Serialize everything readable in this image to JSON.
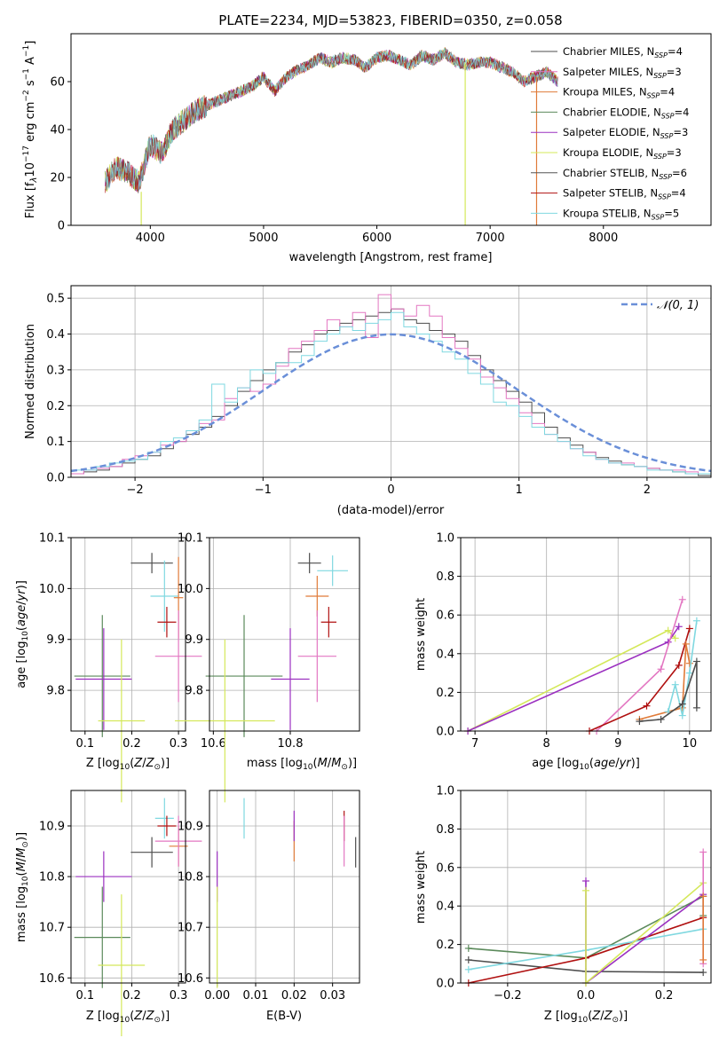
{
  "chart_data": [
    {
      "type": "line",
      "title": "PLATE=2234, MJD=53823, FIBERID=0350, z=0.058",
      "xlabel": "wavelength [Angstrom, rest frame]",
      "ylabel": "Flux [f_λ10^{-17} erg cm^{-2} s^{-1} A^{-1}]",
      "xlim": [
        3300,
        8950
      ],
      "ylim": [
        0,
        80
      ],
      "xticks": [
        4000,
        5000,
        6000,
        7000,
        8000
      ],
      "yticks": [
        0,
        20,
        40,
        60
      ],
      "grid": false,
      "legend_position": "top-right",
      "spectrum_x": [
        3600,
        3700,
        3800,
        3900,
        4000,
        4100,
        4200,
        4300,
        4400,
        4500,
        4600,
        4700,
        4800,
        4900,
        5000,
        5100,
        5200,
        5300,
        5400,
        5500,
        5600,
        5700,
        5800,
        5900,
        6000,
        6100,
        6200,
        6300,
        6400,
        6500,
        6600,
        6700,
        6800,
        6900,
        7000,
        7100,
        7200,
        7300,
        7400,
        7500,
        7600
      ],
      "spectrum_y": [
        18,
        24,
        22,
        18,
        34,
        30,
        40,
        44,
        48,
        50,
        52,
        54,
        56,
        58,
        62,
        56,
        62,
        65,
        67,
        70,
        68,
        70,
        69,
        66,
        70,
        71,
        69,
        67,
        71,
        69,
        72,
        68,
        67,
        68,
        68,
        66,
        64,
        60,
        62,
        64,
        60
      ],
      "series": [
        {
          "name": "Chabrier MILES, N_SSP=4",
          "color": "#4d4d4d"
        },
        {
          "name": "Salpeter MILES, N_SSP=3",
          "color": "#e377c2"
        },
        {
          "name": "Kroupa MILES, N_SSP=4",
          "color": "#e07b39"
        },
        {
          "name": "Chabrier ELODIE, N_SSP=4",
          "color": "#5b8a5b"
        },
        {
          "name": "Salpeter ELODIE, N_SSP=3",
          "color": "#9b30c0"
        },
        {
          "name": "Kroupa ELODIE, N_SSP=3",
          "color": "#d4e85a"
        },
        {
          "name": "Chabrier STELIB, N_SSP=6",
          "color": "#555555"
        },
        {
          "name": "Salpeter STELIB, N_SSP=4",
          "color": "#b01010"
        },
        {
          "name": "Kroupa STELIB, N_SSP=5",
          "color": "#7fd8e0"
        }
      ]
    },
    {
      "type": "bar",
      "xlabel": "(data-model)/error",
      "ylabel": "Normed distribution",
      "xlim": [
        -2.5,
        2.5
      ],
      "ylim": [
        0,
        0.535
      ],
      "xticks": [
        -2,
        -1,
        0,
        1,
        2
      ],
      "yticks": [
        0.0,
        0.1,
        0.2,
        0.3,
        0.4,
        0.5
      ],
      "grid": true,
      "legend_position": "top-right",
      "legend_entry": "𝒩(0, 1)",
      "bin_width": 0.1,
      "histograms": [
        {
          "color": "#4d4d4d",
          "values": [
            0.01,
            0.015,
            0.02,
            0.03,
            0.04,
            0.05,
            0.06,
            0.08,
            0.1,
            0.12,
            0.14,
            0.17,
            0.2,
            0.24,
            0.27,
            0.3,
            0.32,
            0.35,
            0.37,
            0.4,
            0.41,
            0.43,
            0.44,
            0.45,
            0.46,
            0.47,
            0.44,
            0.43,
            0.41,
            0.4,
            0.38,
            0.34,
            0.3,
            0.27,
            0.24,
            0.21,
            0.18,
            0.14,
            0.11,
            0.09,
            0.07,
            0.055,
            0.045,
            0.035,
            0.03,
            0.025,
            0.02,
            0.015,
            0.01,
            0.005
          ]
        },
        {
          "color": "#e377c2",
          "values": [
            0.01,
            0.02,
            0.025,
            0.03,
            0.05,
            0.06,
            0.07,
            0.09,
            0.1,
            0.13,
            0.15,
            0.16,
            0.22,
            0.25,
            0.24,
            0.26,
            0.31,
            0.36,
            0.38,
            0.41,
            0.44,
            0.42,
            0.46,
            0.39,
            0.51,
            0.47,
            0.45,
            0.48,
            0.45,
            0.39,
            0.36,
            0.33,
            0.28,
            0.25,
            0.22,
            0.18,
            0.15,
            0.12,
            0.1,
            0.08,
            0.07,
            0.05,
            0.04,
            0.04,
            0.03,
            0.025,
            0.02,
            0.02,
            0.015,
            0.01
          ]
        },
        {
          "color": "#7fd8e0",
          "values": [
            0.02,
            0.02,
            0.03,
            0.04,
            0.045,
            0.05,
            0.07,
            0.1,
            0.11,
            0.13,
            0.16,
            0.26,
            0.21,
            0.25,
            0.3,
            0.29,
            0.32,
            0.32,
            0.34,
            0.38,
            0.4,
            0.42,
            0.41,
            0.43,
            0.44,
            0.46,
            0.42,
            0.4,
            0.38,
            0.35,
            0.33,
            0.29,
            0.26,
            0.21,
            0.2,
            0.17,
            0.14,
            0.12,
            0.1,
            0.08,
            0.06,
            0.05,
            0.04,
            0.035,
            0.03,
            0.02,
            0.02,
            0.015,
            0.01,
            0.01
          ]
        }
      ]
    },
    {
      "type": "scatter",
      "xlabel": "Z [log10(Z/Z⊙)]",
      "ylabel": "age [log10(age/yr)]",
      "xlim": [
        0.07,
        0.315
      ],
      "ylim": [
        9.72,
        10.1
      ],
      "xticks": [
        0.1,
        0.2,
        0.3
      ],
      "yticks": [
        9.8,
        9.9,
        10.0,
        10.1
      ],
      "grid": true,
      "points": [
        {
          "x": 0.137,
          "y": 9.828,
          "xerr": 0.06,
          "yerr": 0.12,
          "color": "#5b8a5b"
        },
        {
          "x": 0.14,
          "y": 9.822,
          "xerr": 0.06,
          "yerr": 0.1,
          "color": "#9b30c0"
        },
        {
          "x": 0.178,
          "y": 9.74,
          "xerr": 0.05,
          "yerr": 0.16,
          "color": "#d4e85a"
        },
        {
          "x": 0.243,
          "y": 10.05,
          "xerr": 0.045,
          "yerr": 0.02,
          "color": "#4d4d4d"
        },
        {
          "x": 0.27,
          "y": 9.985,
          "xerr": 0.03,
          "yerr": 0.07,
          "color": "#7fd8e0"
        },
        {
          "x": 0.3,
          "y": 9.982,
          "xerr": 0.01,
          "yerr": 0.08,
          "color": "#e07b39"
        },
        {
          "x": 0.275,
          "y": 9.934,
          "xerr": 0.02,
          "yerr": 0.03,
          "color": "#b01010"
        },
        {
          "x": 0.3,
          "y": 9.867,
          "xerr": 0.05,
          "yerr": 0.09,
          "color": "#e377c2"
        }
      ]
    },
    {
      "type": "scatter",
      "xlabel": "mass [log10(M/M⊙)]",
      "ylabel": "",
      "xlim": [
        10.59,
        10.98
      ],
      "ylim": [
        9.72,
        10.1
      ],
      "xticks": [
        10.6,
        10.8
      ],
      "yticks": [
        9.8,
        9.9,
        10.0,
        10.1
      ],
      "grid": true,
      "points": [
        {
          "x": 10.68,
          "y": 9.828,
          "xerr": 0.1,
          "yerr": 0.12,
          "color": "#5b8a5b"
        },
        {
          "x": 10.8,
          "y": 9.822,
          "xerr": 0.05,
          "yerr": 0.1,
          "color": "#9b30c0"
        },
        {
          "x": 10.63,
          "y": 9.74,
          "xerr": 0.13,
          "yerr": 0.16,
          "color": "#d4e85a"
        },
        {
          "x": 10.85,
          "y": 10.05,
          "xerr": 0.03,
          "yerr": 0.02,
          "color": "#4d4d4d"
        },
        {
          "x": 10.91,
          "y": 10.035,
          "xerr": 0.04,
          "yerr": 0.03,
          "color": "#7fd8e0"
        },
        {
          "x": 10.87,
          "y": 9.985,
          "xerr": 0.03,
          "yerr": 0.04,
          "color": "#e07b39"
        },
        {
          "x": 10.9,
          "y": 9.934,
          "xerr": 0.02,
          "yerr": 0.03,
          "color": "#b01010"
        },
        {
          "x": 10.87,
          "y": 9.867,
          "xerr": 0.05,
          "yerr": 0.09,
          "color": "#e377c2"
        }
      ]
    },
    {
      "type": "line",
      "xlabel": "age [log10(age/yr)]",
      "ylabel": "mass weight",
      "xlim": [
        6.8,
        10.3
      ],
      "ylim": [
        0,
        1.0
      ],
      "xticks": [
        7,
        8,
        9,
        10
      ],
      "yticks": [
        0.0,
        0.2,
        0.4,
        0.6,
        0.8,
        1.0
      ],
      "grid": true,
      "series": [
        {
          "color": "#d4e85a",
          "x": [
            6.9,
            9.7,
            9.8
          ],
          "y": [
            0.0,
            0.52,
            0.48
          ]
        },
        {
          "color": "#9b30c0",
          "x": [
            6.9,
            9.7,
            9.85
          ],
          "y": [
            0.0,
            0.46,
            0.54
          ]
        },
        {
          "color": "#e377c2",
          "x": [
            8.7,
            9.6,
            9.9
          ],
          "y": [
            0.0,
            0.32,
            0.68
          ]
        },
        {
          "color": "#b01010",
          "x": [
            8.6,
            9.4,
            9.85,
            10.0
          ],
          "y": [
            0.0,
            0.13,
            0.34,
            0.53
          ]
        },
        {
          "color": "#e07b39",
          "x": [
            9.3,
            9.9,
            9.95,
            10.0
          ],
          "y": [
            0.06,
            0.12,
            0.45,
            0.35
          ]
        },
        {
          "color": "#7fd8e0",
          "x": [
            9.7,
            9.8,
            9.9,
            10.0,
            10.1
          ],
          "y": [
            0.1,
            0.24,
            0.08,
            0.3,
            0.57
          ]
        },
        {
          "color": "#4d4d4d",
          "x": [
            9.3,
            9.6,
            9.9,
            10.1,
            10.1
          ],
          "y": [
            0.05,
            0.06,
            0.14,
            0.36,
            0.12
          ]
        }
      ]
    },
    {
      "type": "scatter",
      "xlabel": "Z [log10(Z/Z⊙)]",
      "ylabel": "mass [log10(M/M⊙)]",
      "xlim": [
        0.07,
        0.315
      ],
      "ylim": [
        10.59,
        10.97
      ],
      "xticks": [
        0.1,
        0.2,
        0.3
      ],
      "yticks": [
        10.6,
        10.7,
        10.8,
        10.9
      ],
      "grid": true,
      "points": [
        {
          "x": 0.137,
          "y": 10.68,
          "xerr": 0.06,
          "yerr": 0.1,
          "color": "#5b8a5b"
        },
        {
          "x": 0.14,
          "y": 10.8,
          "xerr": 0.06,
          "yerr": 0.05,
          "color": "#9b30c0"
        },
        {
          "x": 0.178,
          "y": 10.625,
          "xerr": 0.05,
          "yerr": 0.14,
          "color": "#d4e85a"
        },
        {
          "x": 0.243,
          "y": 10.848,
          "xerr": 0.045,
          "yerr": 0.03,
          "color": "#4d4d4d"
        },
        {
          "x": 0.27,
          "y": 10.915,
          "xerr": 0.02,
          "yerr": 0.04,
          "color": "#7fd8e0"
        },
        {
          "x": 0.3,
          "y": 10.86,
          "xerr": 0.02,
          "yerr": 0.04,
          "color": "#e07b39"
        },
        {
          "x": 0.275,
          "y": 10.9,
          "xerr": 0.02,
          "yerr": 0.02,
          "color": "#b01010"
        },
        {
          "x": 0.3,
          "y": 10.87,
          "xerr": 0.05,
          "yerr": 0.05,
          "color": "#e377c2"
        }
      ]
    },
    {
      "type": "scatter",
      "xlabel": "E(B-V)",
      "ylabel": "",
      "xlim": [
        -0.002,
        0.037
      ],
      "ylim": [
        10.59,
        10.97
      ],
      "xticks": [
        0.0,
        0.01,
        0.02,
        0.03
      ],
      "yticks": [
        10.6,
        10.7,
        10.8,
        10.9
      ],
      "grid": true,
      "points": [
        {
          "x": 0.0,
          "y": 10.8,
          "yerr": 0.05,
          "color": "#9b30c0"
        },
        {
          "x": 0.0,
          "y": 10.68,
          "yerr": 0.1,
          "color": "#d4e85a"
        },
        {
          "x": 0.007,
          "y": 10.915,
          "yerr": 0.04,
          "color": "#7fd8e0"
        },
        {
          "x": 0.02,
          "y": 10.87,
          "yerr": 0.04,
          "color": "#e07b39"
        },
        {
          "x": 0.02,
          "y": 10.9,
          "yerr": 0.03,
          "color": "#9b30c0"
        },
        {
          "x": 0.033,
          "y": 10.9,
          "yerr": 0.03,
          "color": "#b01010"
        },
        {
          "x": 0.033,
          "y": 10.87,
          "yerr": 0.05,
          "color": "#e377c2"
        },
        {
          "x": 0.036,
          "y": 10.848,
          "yerr": 0.03,
          "color": "#4d4d4d"
        }
      ]
    },
    {
      "type": "line",
      "xlabel": "Z [log10(Z/Z⊙)]",
      "ylabel": "mass weight",
      "xlim": [
        -0.32,
        0.32
      ],
      "ylim": [
        0,
        1.0
      ],
      "xticks": [
        -0.2,
        0.0,
        0.2
      ],
      "yticks": [
        0.0,
        0.2,
        0.4,
        0.6,
        0.8,
        1.0
      ],
      "grid": true,
      "series": [
        {
          "color": "#5b8a5b",
          "x": [
            -0.3,
            0.0,
            0.3,
            0.3
          ],
          "y": [
            0.18,
            0.13,
            0.45,
            0.35
          ]
        },
        {
          "color": "#4d4d4d",
          "x": [
            -0.3,
            0.0,
            0.3
          ],
          "y": [
            0.12,
            0.06,
            0.055
          ]
        },
        {
          "color": "#b01010",
          "x": [
            -0.3,
            0.0,
            0.3
          ],
          "y": [
            0.0,
            0.13,
            0.34
          ]
        },
        {
          "color": "#7fd8e0",
          "x": [
            -0.3,
            0.0,
            0.3
          ],
          "y": [
            0.07,
            0.17,
            0.28
          ]
        },
        {
          "color": "#9b30c0",
          "x": [
            0.0,
            0.0,
            0.3
          ],
          "y": [
            0.53,
            0.0,
            0.46
          ]
        },
        {
          "color": "#d4e85a",
          "x": [
            0.0,
            0.0,
            0.3
          ],
          "y": [
            0.48,
            0.0,
            0.52
          ]
        },
        {
          "color": "#e377c2",
          "x": [
            0.3,
            0.3
          ],
          "y": [
            0.68,
            0.1
          ]
        },
        {
          "color": "#e07b39",
          "x": [
            0.3,
            0.3
          ],
          "y": [
            0.45,
            0.12
          ]
        }
      ]
    }
  ]
}
